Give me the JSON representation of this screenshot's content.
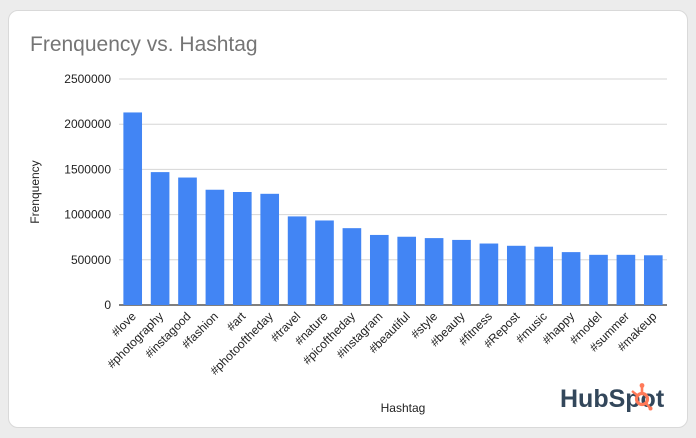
{
  "chart_data": {
    "type": "bar",
    "title": "Frenquency vs. Hashtag",
    "xlabel": "Hashtag",
    "ylabel": "Frenquency",
    "ylim": [
      0,
      2500000
    ],
    "yticks": [
      "0",
      "500000",
      "1000000",
      "1500000",
      "2000000",
      "2500000"
    ],
    "categories": [
      "#love",
      "#photography",
      "#instagood",
      "#fashion",
      "#art",
      "#photooftheday",
      "#travel",
      "#nature",
      "#picoftheday",
      "#instagram",
      "#beautiful",
      "#style",
      "#beauty",
      "#fitness",
      "#Repost",
      "#music",
      "#happy",
      "#model",
      "#summer",
      "#makeup"
    ],
    "values": [
      2130000,
      1470000,
      1410000,
      1275000,
      1250000,
      1230000,
      980000,
      935000,
      850000,
      775000,
      755000,
      740000,
      720000,
      680000,
      655000,
      645000,
      585000,
      555000,
      555000,
      550000
    ],
    "bar_color": "#4285f4",
    "grid": true,
    "legend": "none"
  },
  "branding": {
    "logo_text": "HubSpot",
    "logo_color": "#33475b",
    "accent_color": "#ff7a59"
  }
}
